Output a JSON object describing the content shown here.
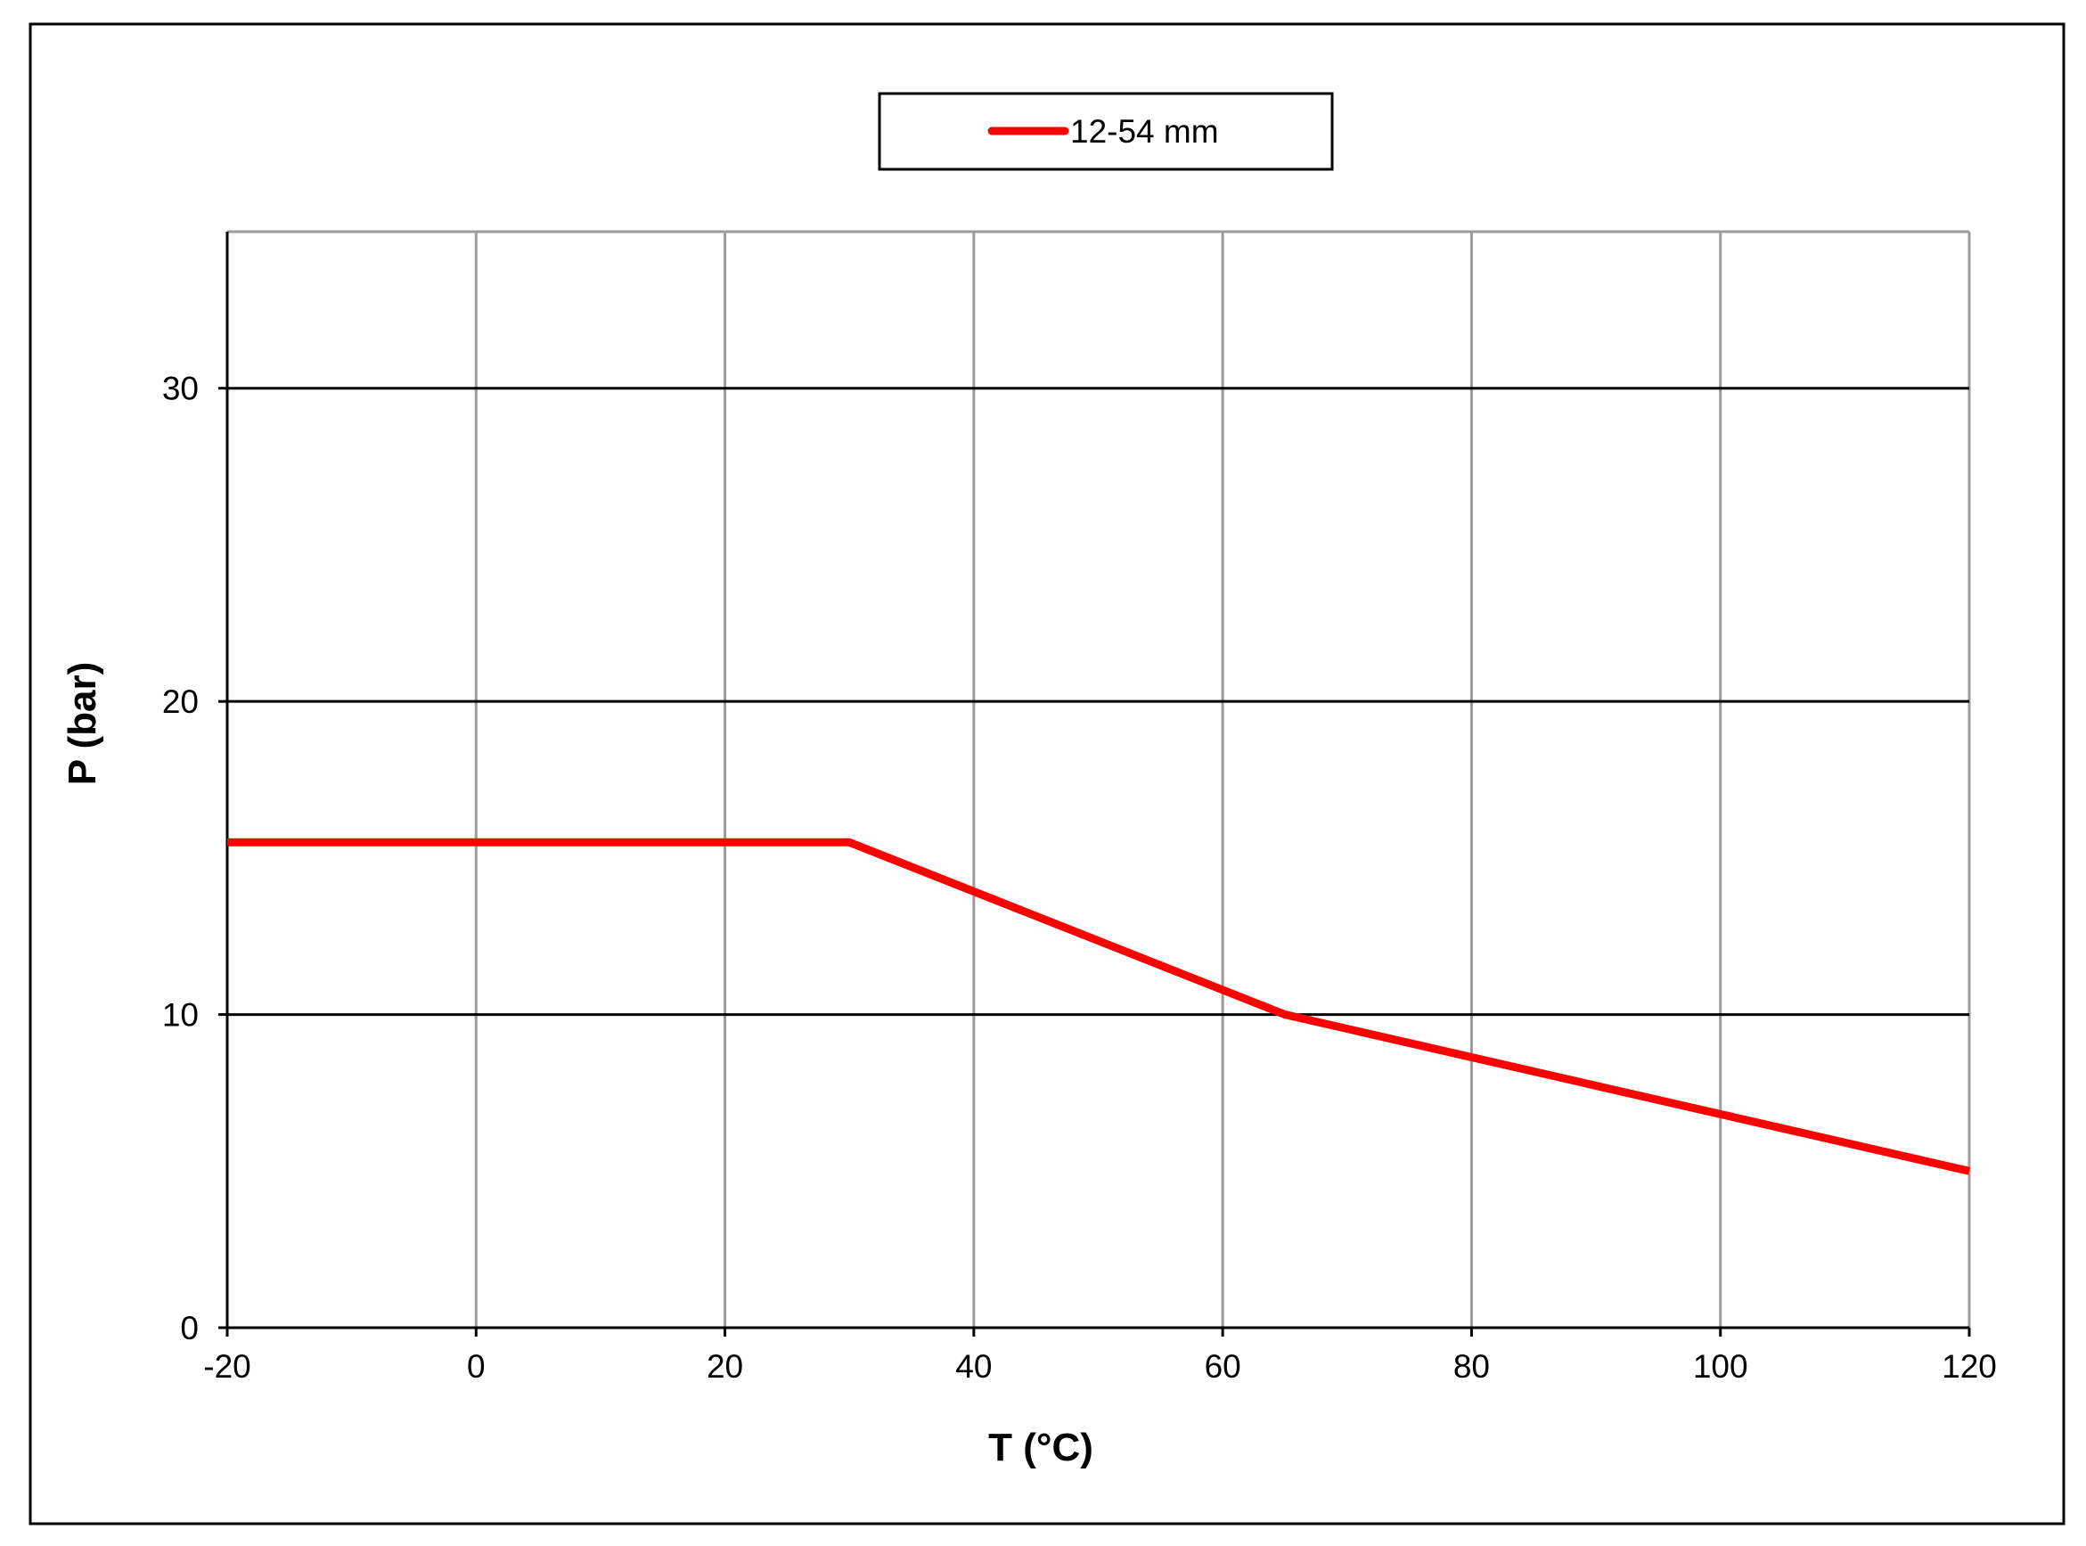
{
  "chart_data": {
    "type": "line",
    "xlabel": "T (°C)",
    "ylabel": "P (bar)",
    "xlim": [
      -20,
      120
    ],
    "ylim": [
      0,
      35
    ],
    "x_ticks": [
      -20,
      0,
      20,
      40,
      60,
      80,
      100,
      120
    ],
    "y_ticks": [
      0,
      10,
      20,
      30
    ],
    "x_tick_labels": [
      "-20",
      "0",
      "20",
      "40",
      "60",
      "80",
      "100",
      "120"
    ],
    "y_tick_labels": [
      "0",
      "10",
      "20",
      "30"
    ],
    "grid": true,
    "legend_position": "top-center",
    "series": [
      {
        "name": "12-54 mm",
        "color": "#ff0000",
        "x": [
          -20,
          30,
          65,
          120
        ],
        "y": [
          15.5,
          15.5,
          10,
          5
        ]
      }
    ]
  }
}
